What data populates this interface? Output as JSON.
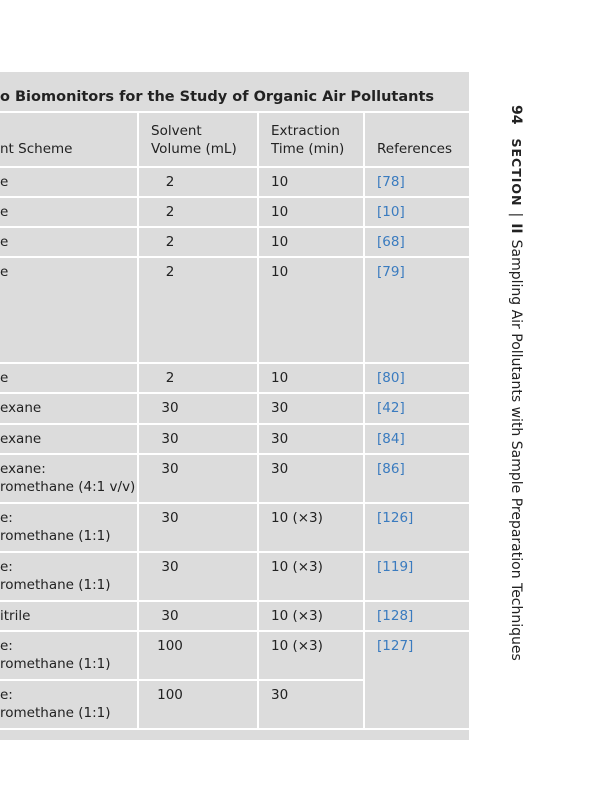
{
  "table": {
    "title": "o Biomonitors for the Study of Organic Air Pollutants",
    "header": [
      [
        "nt Scheme"
      ],
      [
        "Solvent",
        "Volume (mL)"
      ],
      [
        "Extraction",
        "Time (min)"
      ],
      [
        "References"
      ]
    ],
    "rows": [
      [
        [
          "e"
        ],
        [
          "2"
        ],
        [
          "10"
        ],
        [
          "[78]"
        ]
      ],
      [
        [
          "e"
        ],
        [
          "2"
        ],
        [
          "10"
        ],
        [
          "[10]"
        ]
      ],
      [
        [
          "e"
        ],
        [
          "2"
        ],
        [
          "10"
        ],
        [
          "[68]"
        ]
      ],
      [
        [
          "e"
        ],
        [
          "2"
        ],
        [
          "10"
        ],
        [
          "[79]"
        ]
      ],
      [
        [
          "e"
        ],
        [
          "2"
        ],
        [
          "10"
        ],
        [
          "[80]"
        ]
      ],
      [
        [
          "exane"
        ],
        [
          "30"
        ],
        [
          "30"
        ],
        [
          "[42]"
        ]
      ],
      [
        [
          "exane"
        ],
        [
          "30"
        ],
        [
          "30"
        ],
        [
          "[84]"
        ]
      ],
      [
        [
          "exane:",
          "romethane (4:1 v/v)"
        ],
        [
          "30"
        ],
        [
          "30"
        ],
        [
          "[86]"
        ]
      ],
      [
        [
          "e:",
          "romethane (1:1)"
        ],
        [
          "30"
        ],
        [
          "10 (×3)"
        ],
        [
          "[126]"
        ]
      ],
      [
        [
          "e:",
          "romethane (1:1)"
        ],
        [
          "30"
        ],
        [
          "10 (×3)"
        ],
        [
          "[119]"
        ]
      ],
      [
        [
          "itrile"
        ],
        [
          "30"
        ],
        [
          "10 (×3)"
        ],
        [
          "[128]"
        ]
      ],
      [
        [
          "e:",
          "romethane (1:1)"
        ],
        [
          "100"
        ],
        [
          "10 (×3)"
        ],
        [
          "[127]"
        ]
      ],
      [
        [
          "e:",
          "romethane (1:1)"
        ],
        [
          "100"
        ],
        [
          "30"
        ]
      ]
    ]
  },
  "side": {
    "page": "94",
    "section": "SECTION",
    "part": "II",
    "title": "Sampling Air Pollutants with Sample Preparation Techniques"
  }
}
